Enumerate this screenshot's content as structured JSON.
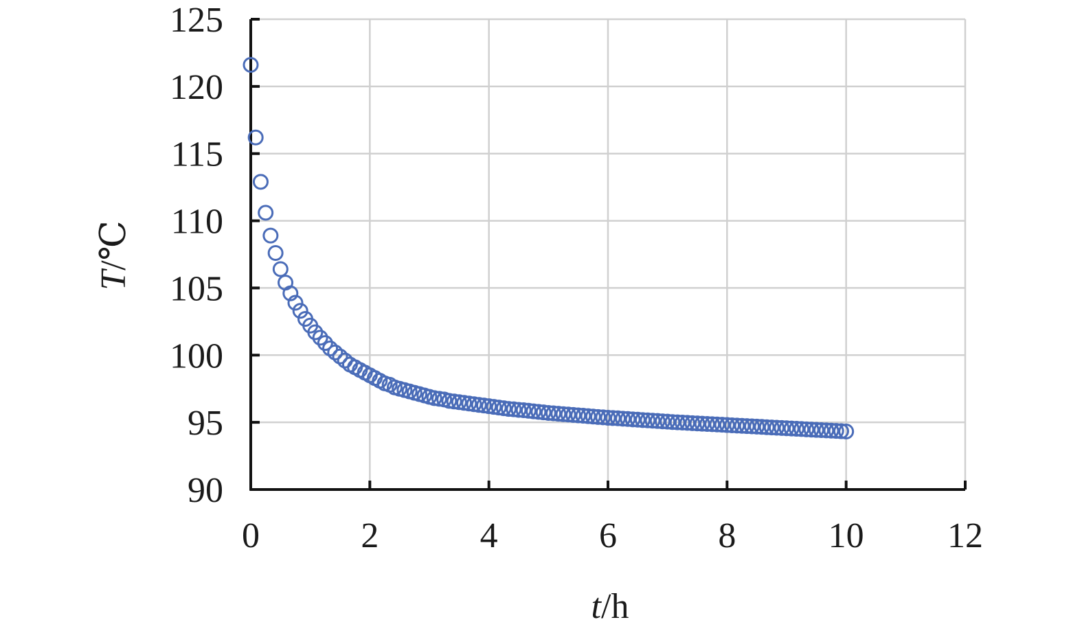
{
  "chart_data": {
    "type": "scatter",
    "xlabel": {
      "var": "t",
      "unit": "/h"
    },
    "ylabel": {
      "var": "T",
      "unit": "/℃"
    },
    "xlim": [
      0,
      12
    ],
    "ylim": [
      90,
      125
    ],
    "xticks": [
      0,
      2,
      4,
      6,
      8,
      10,
      12
    ],
    "yticks": [
      90,
      95,
      100,
      105,
      110,
      115,
      120,
      125
    ],
    "grid": true,
    "marker": "open-circle",
    "colors": {
      "marker": "#4a6cb8",
      "grid": "#d0d0d0",
      "axis": "#111111"
    },
    "series": [
      {
        "x": [
          0,
          0.083,
          0.167,
          0.25,
          0.333,
          0.417,
          0.5,
          0.583,
          0.667,
          0.75,
          0.833,
          0.917,
          1.0,
          1.083,
          1.167,
          1.25,
          1.333,
          1.417,
          1.5,
          1.583,
          1.667,
          1.75,
          1.833,
          1.917,
          2.0,
          2.083,
          2.167,
          2.25,
          2.333,
          2.417,
          2.5,
          2.583,
          2.667,
          2.75,
          2.833,
          2.917,
          3.0,
          3.083,
          3.167,
          3.25,
          3.333,
          3.417,
          3.5,
          3.583,
          3.667,
          3.75,
          3.833,
          3.917,
          4.0,
          4.083,
          4.167,
          4.25,
          4.333,
          4.417,
          4.5,
          4.583,
          4.667,
          4.75,
          4.833,
          4.917,
          5.0,
          5.083,
          5.167,
          5.25,
          5.333,
          5.417,
          5.5,
          5.583,
          5.667,
          5.75,
          5.833,
          5.917,
          6.0,
          6.083,
          6.167,
          6.25,
          6.333,
          6.417,
          6.5,
          6.583,
          6.667,
          6.75,
          6.833,
          6.917,
          7.0,
          7.083,
          7.167,
          7.25,
          7.333,
          7.417,
          7.5,
          7.583,
          7.667,
          7.75,
          7.833,
          7.917,
          8.0,
          8.083,
          8.167,
          8.25,
          8.333,
          8.417,
          8.5,
          8.583,
          8.667,
          8.75,
          8.833,
          8.917,
          9.0,
          9.083,
          9.167,
          9.25,
          9.333,
          9.417,
          9.5,
          9.583,
          9.667,
          9.75,
          9.833,
          9.917,
          10.0
        ],
        "y": [
          121.6,
          116.2,
          112.9,
          110.6,
          108.9,
          107.6,
          106.4,
          105.4,
          104.6,
          103.9,
          103.3,
          102.7,
          102.2,
          101.7,
          101.3,
          100.9,
          100.5,
          100.2,
          99.9,
          99.6,
          99.3,
          99.1,
          98.9,
          98.7,
          98.5,
          98.3,
          98.1,
          97.9,
          97.8,
          97.6,
          97.5,
          97.4,
          97.3,
          97.2,
          97.1,
          97.0,
          96.9,
          96.8,
          96.75,
          96.7,
          96.6,
          96.55,
          96.5,
          96.45,
          96.4,
          96.35,
          96.3,
          96.25,
          96.2,
          96.15,
          96.1,
          96.05,
          96.0,
          95.97,
          95.93,
          95.9,
          95.86,
          95.82,
          95.78,
          95.74,
          95.7,
          95.67,
          95.64,
          95.61,
          95.58,
          95.55,
          95.52,
          95.49,
          95.46,
          95.43,
          95.4,
          95.37,
          95.34,
          95.32,
          95.3,
          95.27,
          95.25,
          95.22,
          95.2,
          95.17,
          95.15,
          95.12,
          95.1,
          95.07,
          95.05,
          95.02,
          95.0,
          94.98,
          94.96,
          94.94,
          94.92,
          94.9,
          94.88,
          94.86,
          94.84,
          94.82,
          94.8,
          94.78,
          94.76,
          94.74,
          94.72,
          94.7,
          94.68,
          94.66,
          94.64,
          94.62,
          94.6,
          94.58,
          94.56,
          94.54,
          94.52,
          94.5,
          94.48,
          94.46,
          94.44,
          94.42,
          94.4,
          94.38,
          94.36,
          94.34,
          94.32
        ]
      }
    ]
  }
}
